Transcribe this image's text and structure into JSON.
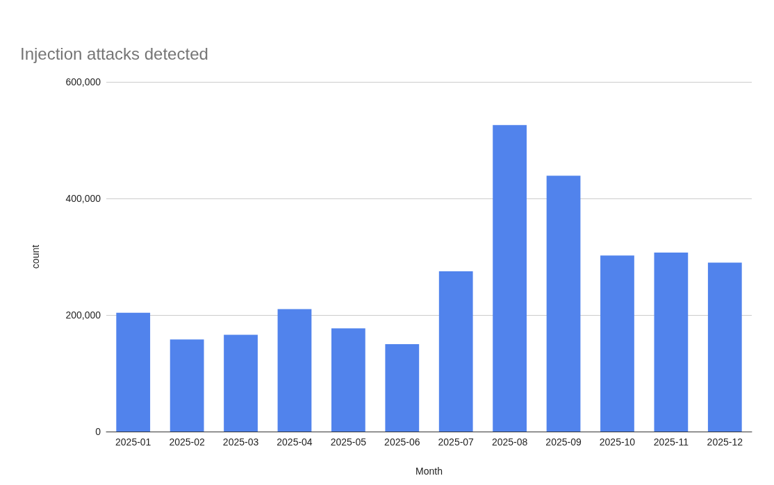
{
  "chart_data": {
    "type": "bar",
    "title": "Injection attacks detected",
    "xlabel": "Month",
    "ylabel": "count",
    "categories": [
      "2025-01",
      "2025-02",
      "2025-03",
      "2025-04",
      "2025-05",
      "2025-06",
      "2025-07",
      "2025-08",
      "2025-09",
      "2025-10",
      "2025-11",
      "2025-12"
    ],
    "values": [
      204000,
      158000,
      166000,
      210000,
      177000,
      150000,
      275000,
      526000,
      439000,
      302000,
      307000,
      290000
    ],
    "color": "#5183ec",
    "ylim": [
      0,
      600000
    ],
    "yticks": [
      0,
      {
        "value": 200000,
        "label": "200,000"
      },
      {
        "value": 400000,
        "label": "400,000"
      },
      {
        "value": 600000,
        "label": "600,000"
      }
    ],
    "grid": "y"
  }
}
